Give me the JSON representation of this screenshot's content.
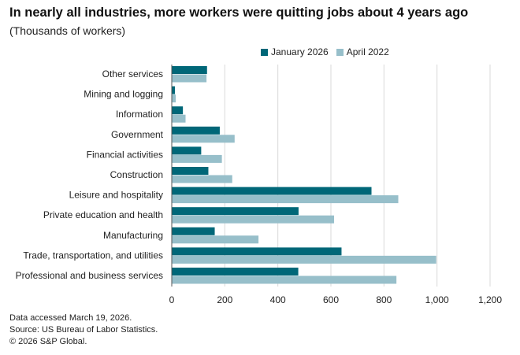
{
  "header": {
    "title": "In nearly all industries, more workers were quitting jobs about 4 years ago",
    "subtitle": "(Thousands of workers)"
  },
  "footer": {
    "line1": "Data accessed March 19, 2026.",
    "line2": "Source: US Bureau of Labor Statistics.",
    "line3": "© 2026 S&P Global."
  },
  "colors": {
    "series1": "#006778",
    "series2": "#97bfca",
    "grid": "#d9d9d9",
    "axis": "#555555"
  },
  "chart_data": {
    "type": "bar",
    "orientation": "horizontal",
    "title": "In nearly all industries, more workers were quitting jobs about 4 years ago",
    "subtitle": "(Thousands of workers)",
    "xlabel": "",
    "ylabel": "",
    "xlim": [
      0,
      1200
    ],
    "x_ticks": [
      "0",
      "200",
      "400",
      "600",
      "800",
      "1,000",
      "1,200"
    ],
    "x_tick_values": [
      0,
      200,
      400,
      600,
      800,
      1000,
      1200
    ],
    "grid": "vertical",
    "legend_position": "top-right",
    "categories": [
      "Other services",
      "Mining and logging",
      "Information",
      "Government",
      "Financial activities",
      "Construction",
      "Leisure and hospitality",
      "Private education and health",
      "Manufacturing",
      "Trade, transportation, and utilities",
      "Professional and business services"
    ],
    "series": [
      {
        "name": "January 2026",
        "values": [
          133,
          12,
          42,
          181,
          111,
          138,
          753,
          478,
          162,
          640,
          477
        ]
      },
      {
        "name": "April 2022",
        "values": [
          131,
          15,
          52,
          237,
          189,
          228,
          854,
          612,
          327,
          997,
          847
        ]
      }
    ]
  }
}
